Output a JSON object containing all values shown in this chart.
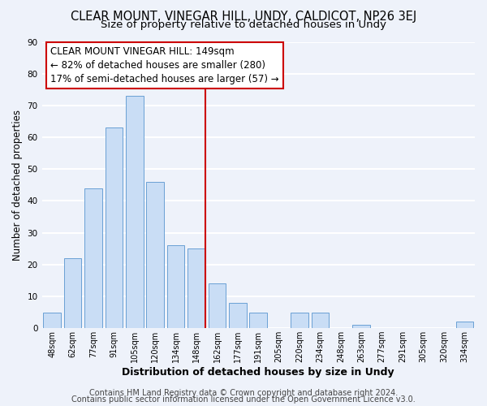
{
  "title": "CLEAR MOUNT, VINEGAR HILL, UNDY, CALDICOT, NP26 3EJ",
  "subtitle": "Size of property relative to detached houses in Undy",
  "xlabel": "Distribution of detached houses by size in Undy",
  "ylabel": "Number of detached properties",
  "bar_labels": [
    "48sqm",
    "62sqm",
    "77sqm",
    "91sqm",
    "105sqm",
    "120sqm",
    "134sqm",
    "148sqm",
    "162sqm",
    "177sqm",
    "191sqm",
    "205sqm",
    "220sqm",
    "234sqm",
    "248sqm",
    "263sqm",
    "277sqm",
    "291sqm",
    "305sqm",
    "320sqm",
    "334sqm"
  ],
  "bar_values": [
    5,
    22,
    44,
    63,
    73,
    46,
    26,
    25,
    14,
    8,
    5,
    0,
    5,
    5,
    0,
    1,
    0,
    0,
    0,
    0,
    2
  ],
  "bar_color": "#c9ddf5",
  "bar_edge_color": "#6aa0d4",
  "vline_x_index": 7,
  "vline_color": "#cc0000",
  "ylim": [
    0,
    90
  ],
  "yticks": [
    0,
    10,
    20,
    30,
    40,
    50,
    60,
    70,
    80,
    90
  ],
  "annotation_title": "CLEAR MOUNT VINEGAR HILL: 149sqm",
  "annotation_line1": "← 82% of detached houses are smaller (280)",
  "annotation_line2": "17% of semi-detached houses are larger (57) →",
  "footer_line1": "Contains HM Land Registry data © Crown copyright and database right 2024.",
  "footer_line2": "Contains public sector information licensed under the Open Government Licence v3.0.",
  "bg_color": "#eef2fa",
  "plot_bg_color": "#eef2fa",
  "grid_color": "#ffffff",
  "title_fontsize": 10.5,
  "subtitle_fontsize": 9.5,
  "xlabel_fontsize": 9,
  "ylabel_fontsize": 8.5,
  "footer_fontsize": 7,
  "ann_fontsize": 8.5
}
